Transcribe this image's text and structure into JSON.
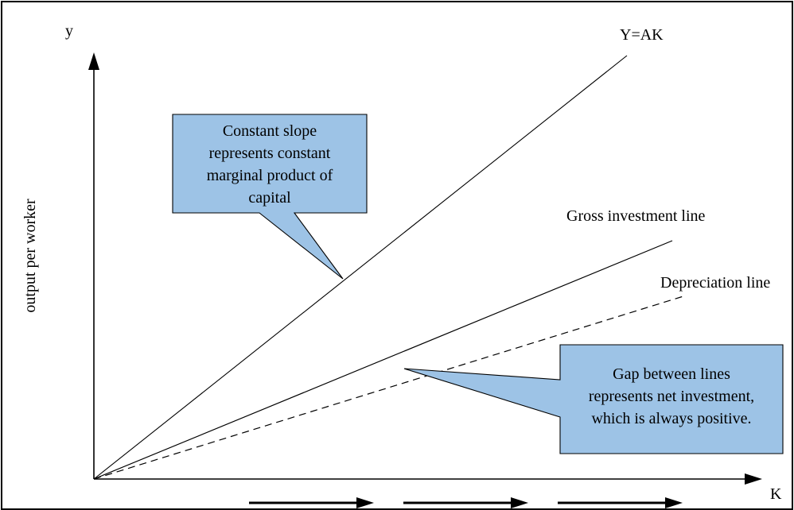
{
  "axes": {
    "y_letter": "y",
    "y_label": "output per worker",
    "x_letter": "K"
  },
  "lines": {
    "ak_label": "Y=AK",
    "gross_label": "Gross investment line",
    "depreciation_label": "Depreciation line"
  },
  "callouts": {
    "slope": {
      "lines": [
        "Constant slope",
        "represents constant",
        "marginal product of",
        "capital"
      ],
      "fill": "#9dc3e6"
    },
    "gap": {
      "lines": [
        "Gap between lines",
        "represents net investment,",
        "which is always positive."
      ],
      "fill": "#9dc3e6"
    }
  },
  "bottom_arrows": {
    "count": 3
  },
  "colors": {
    "stroke": "#000000",
    "callout_fill": "#9dc3e6",
    "background": "#ffffff"
  }
}
